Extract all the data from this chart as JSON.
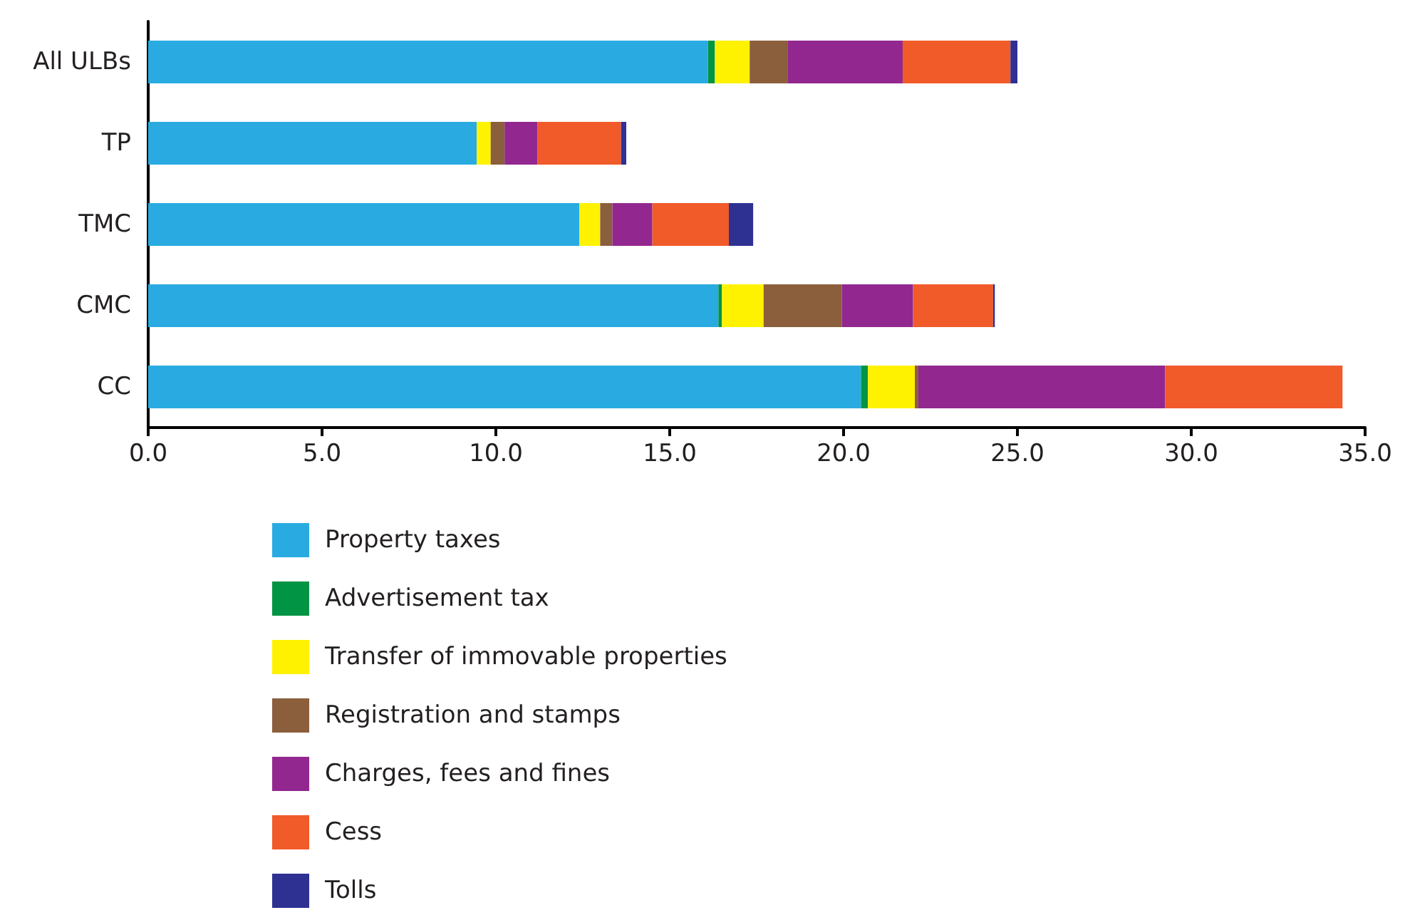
{
  "chart_data": {
    "type": "bar",
    "orientation": "horizontal",
    "stacked": true,
    "categories": [
      "All ULBs",
      "TP",
      "TMC",
      "CMC",
      "CC"
    ],
    "series": [
      {
        "name": "Property taxes",
        "color": "#29abe2",
        "values": [
          16.1,
          9.45,
          12.4,
          16.4,
          20.5
        ]
      },
      {
        "name": "Advertisement tax",
        "color": "#009444",
        "values": [
          0.2,
          0,
          0,
          0.1,
          0.2
        ]
      },
      {
        "name": "Transfer of immovable properties",
        "color": "#fff200",
        "values": [
          1.0,
          0.4,
          0.6,
          1.2,
          1.35
        ]
      },
      {
        "name": "Registration and stamps",
        "color": "#8b5e3c",
        "values": [
          1.1,
          0.4,
          0.35,
          2.25,
          0.1
        ]
      },
      {
        "name": "Charges, fees and fines",
        "color": "#92278f",
        "values": [
          3.3,
          0.95,
          1.15,
          2.05,
          7.1
        ]
      },
      {
        "name": "Cess",
        "color": "#f15a29",
        "values": [
          3.1,
          2.4,
          2.2,
          2.3,
          5.1
        ]
      },
      {
        "name": "Tolls",
        "color": "#2e3192",
        "values": [
          0.2,
          0.15,
          0.7,
          0.05,
          0
        ]
      }
    ],
    "xlim": [
      0,
      35
    ],
    "xticks": [
      {
        "value": 0,
        "label": "0.0"
      },
      {
        "value": 5,
        "label": "5.0"
      },
      {
        "value": 10,
        "label": "10.0"
      },
      {
        "value": 15,
        "label": "15.0"
      },
      {
        "value": 20,
        "label": "20.0"
      },
      {
        "value": 25,
        "label": "25.0"
      },
      {
        "value": 30,
        "label": "30.0"
      },
      {
        "value": 35,
        "label": "35.0"
      }
    ],
    "grid": false,
    "legend": "bottom"
  }
}
